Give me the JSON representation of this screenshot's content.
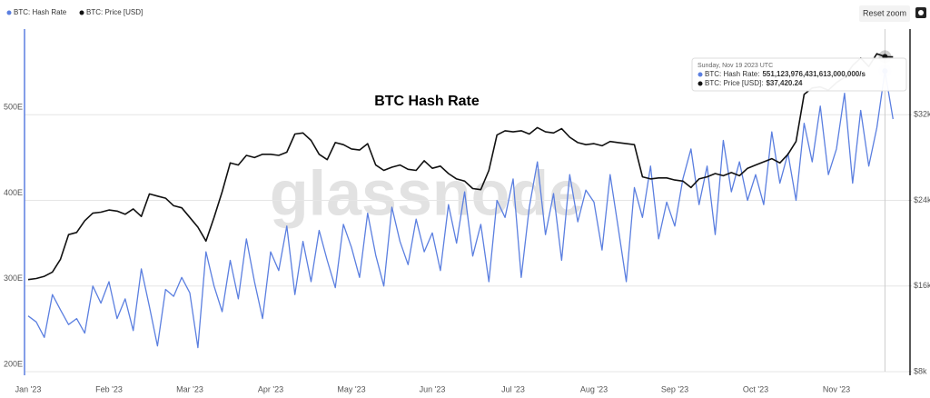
{
  "chart_data": {
    "type": "line",
    "title": "BTC Hash Rate",
    "watermark": "glassnode",
    "button": "Reset zoom",
    "categories": [
      "Jan '23",
      null,
      null,
      null,
      null,
      null,
      null,
      null,
      null,
      null,
      "Feb '23",
      null,
      null,
      null,
      null,
      null,
      null,
      null,
      null,
      null,
      "Mar '23",
      null,
      null,
      null,
      null,
      null,
      null,
      null,
      null,
      null,
      "Apr '23",
      null,
      null,
      null,
      null,
      null,
      null,
      null,
      null,
      null,
      "May '23",
      null,
      null,
      null,
      null,
      null,
      null,
      null,
      null,
      null,
      "Jun '23",
      null,
      null,
      null,
      null,
      null,
      null,
      null,
      null,
      null,
      "Jul '23",
      null,
      null,
      null,
      null,
      null,
      null,
      null,
      null,
      null,
      "Aug '23",
      null,
      null,
      null,
      null,
      null,
      null,
      null,
      null,
      null,
      "Sep '23",
      null,
      null,
      null,
      null,
      null,
      null,
      null,
      null,
      null,
      "Oct '23",
      null,
      null,
      null,
      null,
      null,
      null,
      null,
      null,
      null,
      "Nov '23",
      null,
      null,
      null,
      null,
      null,
      null,
      null
    ],
    "series": [
      {
        "name": "BTC: Hash Rate",
        "color": "#5b7fe0",
        "values": [
          265,
          258,
          240,
          290,
          272,
          255,
          262,
          245,
          300,
          280,
          305,
          262,
          285,
          248,
          320,
          276,
          230,
          296,
          288,
          310,
          292,
          228,
          340,
          300,
          270,
          330,
          285,
          355,
          305,
          262,
          340,
          318,
          370,
          290,
          352,
          305,
          365,
          330,
          298,
          372,
          345,
          310,
          385,
          336,
          300,
          392,
          352,
          325,
          378,
          340,
          362,
          318,
          395,
          350,
          410,
          335,
          372,
          305,
          400,
          380,
          425,
          310,
          392,
          445,
          360,
          408,
          330,
          430,
          375,
          412,
          398,
          342,
          430,
          368,
          305,
          415,
          380,
          440,
          355,
          398,
          370,
          425,
          460,
          395,
          440,
          360,
          470,
          410,
          445,
          400,
          430,
          395,
          480,
          420,
          455,
          400,
          490,
          445,
          510,
          430,
          460,
          525,
          420,
          505,
          440,
          485,
          551.12,
          495
        ]
      },
      {
        "name": "BTC: Price [USD]",
        "color": "#111111",
        "axis": "y2",
        "values": [
          16600,
          16700,
          16900,
          17300,
          18500,
          20800,
          21000,
          22100,
          22800,
          22900,
          23100,
          23000,
          22700,
          23200,
          22500,
          24600,
          24400,
          24200,
          23500,
          23300,
          22400,
          21500,
          20200,
          22400,
          24800,
          27500,
          27300,
          28200,
          28000,
          28300,
          28300,
          28200,
          28500,
          30200,
          30300,
          29600,
          28300,
          27800,
          29400,
          29200,
          28800,
          28700,
          29300,
          27300,
          26800,
          27100,
          27300,
          26900,
          26800,
          27700,
          27000,
          27200,
          26500,
          26000,
          25800,
          25100,
          25000,
          26800,
          30100,
          30500,
          30400,
          30500,
          30200,
          30800,
          30400,
          30300,
          30700,
          29900,
          29400,
          29200,
          29300,
          29100,
          29500,
          29400,
          29300,
          29200,
          26200,
          26000,
          26100,
          26100,
          25900,
          25800,
          25200,
          26000,
          26200,
          26500,
          26300,
          26600,
          26300,
          27000,
          27300,
          27600,
          27900,
          27500,
          28300,
          29500,
          33900,
          34500,
          34600,
          34300,
          35000,
          35500,
          36600,
          37300,
          36500,
          37700,
          37420,
          37400
        ]
      }
    ],
    "ylim": [
      200,
      600
    ],
    "yticks": [
      {
        "value": 200,
        "label": "200E"
      },
      {
        "value": 300,
        "label": "300E"
      },
      {
        "value": 400,
        "label": "400E"
      },
      {
        "value": 500,
        "label": "500E"
      }
    ],
    "y2lim": [
      8000,
      40000
    ],
    "y2ticks": [
      {
        "value": 8000,
        "label": "$8k"
      },
      {
        "value": 16000,
        "label": "$16k"
      },
      {
        "value": 24000,
        "label": "$24k"
      },
      {
        "value": 32000,
        "label": "$32k"
      }
    ],
    "grid": true,
    "tooltip": {
      "index": 106,
      "date": "Sunday, Nov 19 2023 UTC",
      "rows": [
        {
          "label": "BTC: Hash Rate:",
          "value": "551,123,976,431,613,000,000/s"
        },
        {
          "label": "BTC: Price [USD]:",
          "value": "$37,420.24"
        }
      ]
    }
  }
}
